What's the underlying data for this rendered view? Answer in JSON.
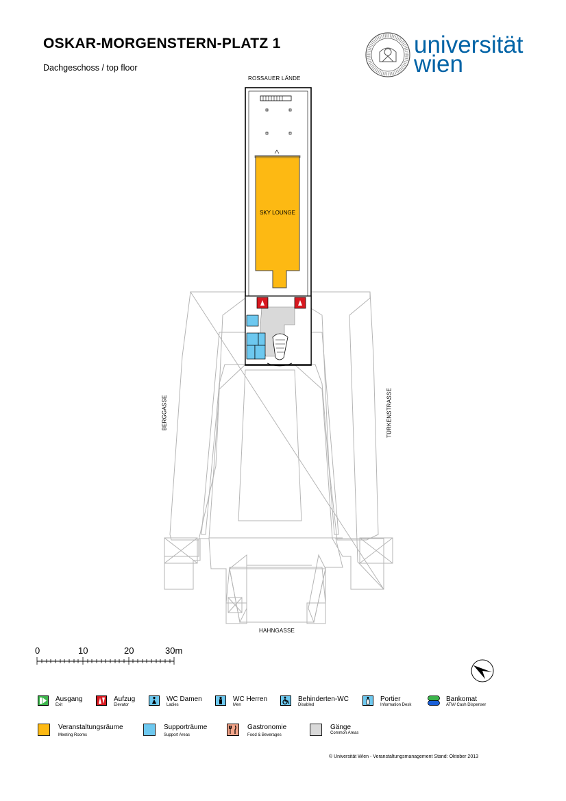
{
  "header": {
    "title": "OSKAR-MORGENSTERN-PLATZ 1",
    "subtitle": "Dachgeschoss / top floor",
    "logo_text_1": "universität",
    "logo_text_2": "wien",
    "brand_color": "#0063a6"
  },
  "map": {
    "streets": {
      "north": "ROSSAUER LÄNDE",
      "west": "BERGGASSE",
      "east": "TÜRKENSTRASSE",
      "south": "HAHNGASSE"
    },
    "room_label": "SKY LOUNGE"
  },
  "scale": {
    "ticks": [
      "0",
      "10",
      "20",
      "30m"
    ]
  },
  "legend": [
    {
      "label": "Ausgang",
      "sub": "Exit",
      "color": "#3cb44b",
      "icon": "exit-icon"
    },
    {
      "label": "Aufzug",
      "sub": "Elevator",
      "color": "#d71920",
      "icon": "elevator-icon"
    },
    {
      "label": "WC Damen",
      "sub": "Ladies",
      "color": "#6dc8ef",
      "icon": "wc-ladies-icon"
    },
    {
      "label": "WC Herren",
      "sub": "Men",
      "color": "#6dc8ef",
      "icon": "wc-men-icon"
    },
    {
      "label": "Behinderten-WC",
      "sub": "Disabled",
      "color": "#6dc8ef",
      "icon": "wc-disabled-icon"
    },
    {
      "label": "Portier",
      "sub": "Information Desk",
      "color": "#6dc8ef",
      "icon": "info-desk-icon"
    },
    {
      "label": "Bankomat",
      "sub": "ATM/ Cash Dispenser",
      "color": "#3cb44b",
      "icon": "atm-icon"
    },
    {
      "label": "Veranstaltungsräume",
      "sub": "Meeting Rooms",
      "color": "#fdb913",
      "icon": "meeting-rooms-swatch"
    },
    {
      "label": "Supporträume",
      "sub": "Support Areas",
      "color": "#6dc8ef",
      "icon": "support-areas-swatch"
    },
    {
      "label": "Gastronomie",
      "sub": "Food & Beverages",
      "color": "#f4a58a",
      "icon": "gastronomy-icon"
    },
    {
      "label": "Gänge",
      "sub": "Common Areas",
      "color": "#d9d9d9",
      "icon": "common-areas-swatch"
    }
  ],
  "footer": {
    "copyright": "© Universität Wien - Veranstaltungsmanagement Stand: Oktober 2013"
  }
}
